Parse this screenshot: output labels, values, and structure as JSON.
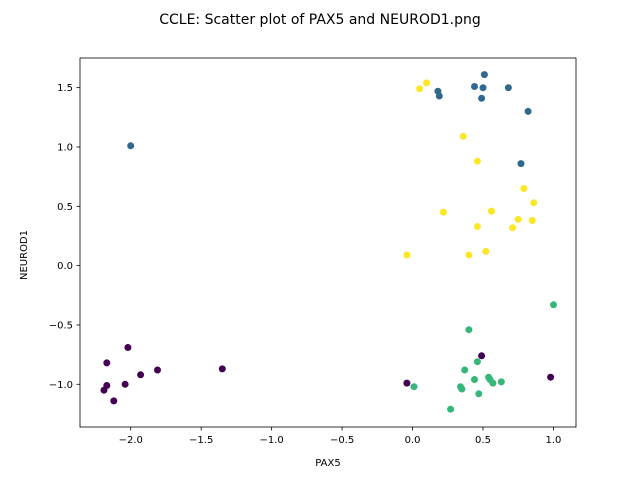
{
  "chart_data": {
    "type": "scatter",
    "title": "CCLE: Scatter plot of PAX5 and NEUROD1.png",
    "xlabel": "PAX5",
    "ylabel": "NEUROD1",
    "xlim": [
      -2.36,
      1.16
    ],
    "ylim": [
      -1.36,
      1.75
    ],
    "xticks": [
      -2.0,
      -1.5,
      -1.0,
      -0.5,
      0.0,
      0.5,
      1.0
    ],
    "xtick_labels": [
      "−2.0",
      "−1.5",
      "−1.0",
      "−0.5",
      "0.0",
      "0.5",
      "1.0"
    ],
    "yticks": [
      -1.0,
      -0.5,
      0.0,
      0.5,
      1.0,
      1.5
    ],
    "ytick_labels": [
      "−1.0",
      "−0.5",
      "0.0",
      "0.5",
      "1.0",
      "1.5"
    ],
    "grid": false,
    "colors": {
      "cluster0": "#440154",
      "cluster1": "#31688e",
      "cluster2": "#35b779",
      "cluster3": "#fde725"
    },
    "series": [
      {
        "color": "#440154",
        "points": [
          [
            -2.02,
            -0.69
          ],
          [
            -2.17,
            -0.82
          ],
          [
            -1.35,
            -0.87
          ],
          [
            -1.81,
            -0.88
          ],
          [
            -1.93,
            -0.92
          ],
          [
            -2.04,
            -1.0
          ],
          [
            -2.17,
            -1.01
          ],
          [
            -2.19,
            -1.05
          ],
          [
            -2.12,
            -1.14
          ],
          [
            -0.04,
            -0.99
          ],
          [
            0.49,
            -0.76
          ],
          [
            0.98,
            -0.94
          ]
        ]
      },
      {
        "color": "#31688e",
        "points": [
          [
            -2.0,
            1.01
          ],
          [
            0.18,
            1.47
          ],
          [
            0.19,
            1.43
          ],
          [
            0.44,
            1.51
          ],
          [
            0.5,
            1.5
          ],
          [
            0.51,
            1.61
          ],
          [
            0.49,
            1.41
          ],
          [
            0.68,
            1.5
          ],
          [
            0.82,
            1.3
          ],
          [
            0.77,
            0.86
          ]
        ]
      },
      {
        "color": "#35b779",
        "points": [
          [
            1.0,
            -0.33
          ],
          [
            0.4,
            -0.54
          ],
          [
            0.46,
            -0.81
          ],
          [
            0.37,
            -0.88
          ],
          [
            0.44,
            -0.96
          ],
          [
            0.54,
            -0.94
          ],
          [
            0.55,
            -0.96
          ],
          [
            0.57,
            -0.99
          ],
          [
            0.63,
            -0.98
          ],
          [
            0.34,
            -1.02
          ],
          [
            0.35,
            -1.04
          ],
          [
            0.47,
            -1.08
          ],
          [
            0.27,
            -1.21
          ],
          [
            0.01,
            -1.02
          ]
        ]
      },
      {
        "color": "#fde725",
        "points": [
          [
            0.05,
            1.49
          ],
          [
            0.1,
            1.54
          ],
          [
            0.36,
            1.09
          ],
          [
            0.46,
            0.88
          ],
          [
            0.79,
            0.65
          ],
          [
            0.86,
            0.53
          ],
          [
            0.56,
            0.46
          ],
          [
            0.22,
            0.45
          ],
          [
            0.75,
            0.39
          ],
          [
            0.85,
            0.38
          ],
          [
            0.46,
            0.33
          ],
          [
            0.71,
            0.32
          ],
          [
            0.52,
            0.12
          ],
          [
            0.4,
            0.09
          ],
          [
            -0.04,
            0.09
          ]
        ]
      }
    ]
  }
}
